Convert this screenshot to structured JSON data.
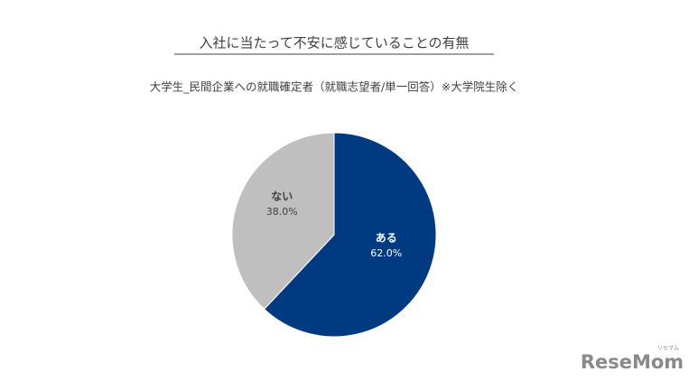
{
  "chart_data": {
    "type": "pie",
    "title": "入社に当たって不安に感じていることの有無",
    "subtitle": "大学生_民間企業への就職確定者（就職志望者/単一回答）※大学院生除く",
    "categories": [
      "ある",
      "ない"
    ],
    "values": [
      62.0,
      38.0
    ],
    "value_labels": [
      "62.0%",
      "38.0%"
    ],
    "colors": [
      "#003a80",
      "#bfbfbf"
    ],
    "label_colors": [
      "#ffffff",
      "#404040"
    ],
    "watermark": "ReseMom",
    "watermark_sub": "リセマム"
  }
}
